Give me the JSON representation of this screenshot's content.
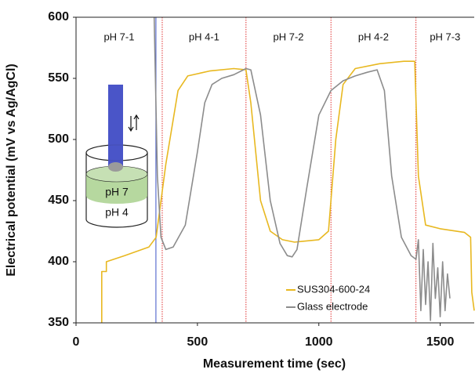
{
  "chart_data": {
    "type": "line",
    "x_label": "Measurement time (sec)",
    "y_label": "Electrical potential (mV vs Ag/AgCl)",
    "xlim": [
      0,
      1640
    ],
    "xticks": [
      0,
      500,
      1000,
      1500
    ],
    "ylim": [
      350,
      600
    ],
    "yticks": [
      350,
      400,
      450,
      500,
      550,
      600
    ],
    "legend": "lower right",
    "boundaries": [
      355,
      700,
      1050,
      1400
    ],
    "boundary_color": "#e03030",
    "marker": 329,
    "marker_color": "#5b6fd0",
    "regions": [
      "pH 7-1",
      "pH 4-1",
      "pH 7-2",
      "pH 4-2",
      "pH 7-3"
    ],
    "inset_labels": [
      "pH 7",
      "pH 4"
    ],
    "series": [
      {
        "name": "SUS304-600-24",
        "color": "#e8b820",
        "x": [
          106,
          106,
          125,
          125,
          200,
          300,
          330,
          370,
          420,
          460,
          550,
          650,
          700,
          720,
          760,
          800,
          850,
          900,
          1000,
          1040,
          1070,
          1100,
          1150,
          1250,
          1350,
          1395,
          1410,
          1440,
          1500,
          1600,
          1625,
          1630,
          1640
        ],
        "values": [
          350,
          392,
          392,
          400,
          405,
          412,
          420,
          480,
          540,
          552,
          556,
          558,
          557,
          530,
          450,
          425,
          418,
          416,
          418,
          425,
          500,
          545,
          558,
          562,
          564,
          564,
          470,
          430,
          427,
          424,
          420,
          375,
          360
        ]
      },
      {
        "name": "Glass electrode",
        "color": "#8c8c8c",
        "x": [
          322,
          335,
          350,
          370,
          400,
          450,
          500,
          530,
          560,
          600,
          650,
          700,
          720,
          760,
          800,
          840,
          870,
          890,
          910,
          950,
          1000,
          1050,
          1100,
          1150,
          1200,
          1240,
          1270,
          1300,
          1340,
          1380,
          1400,
          1410,
          1420,
          1430,
          1440,
          1450,
          1460,
          1470,
          1480,
          1490,
          1500,
          1510,
          1520,
          1530,
          1540
        ],
        "values": [
          600,
          470,
          420,
          410,
          412,
          430,
          490,
          530,
          545,
          550,
          553,
          558,
          557,
          520,
          450,
          415,
          405,
          404,
          410,
          460,
          520,
          540,
          548,
          552,
          555,
          557,
          540,
          470,
          420,
          405,
          402,
          418,
          360,
          410,
          365,
          400,
          352,
          415,
          370,
          395,
          355,
          400,
          360,
          390,
          370
        ]
      }
    ]
  }
}
